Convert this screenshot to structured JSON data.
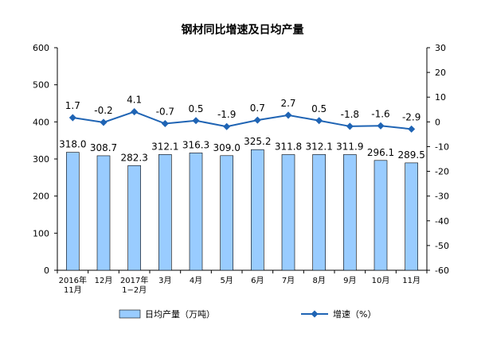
{
  "chart_data": {
    "type": "bar",
    "title": "钢材同比增速及日均产量",
    "categories": [
      [
        "2016年",
        "11月"
      ],
      [
        "12月"
      ],
      [
        "2017年",
        "1−2月"
      ],
      [
        "3月"
      ],
      [
        "4月"
      ],
      [
        "5月"
      ],
      [
        "6月"
      ],
      [
        "7月"
      ],
      [
        "8月"
      ],
      [
        "9月"
      ],
      [
        "10月"
      ],
      [
        "11月"
      ]
    ],
    "series": [
      {
        "name": "日均产量（万吨）",
        "type": "bar",
        "axis": "left",
        "color": "#99ccff",
        "values": [
          318.0,
          308.7,
          282.3,
          312.1,
          316.3,
          309.0,
          325.2,
          311.8,
          312.1,
          311.9,
          296.1,
          289.5
        ],
        "labels": [
          "318.0",
          "308.7",
          "282.3",
          "312.1",
          "316.3",
          "309.0",
          "325.2",
          "311.8",
          "312.1",
          "311.9",
          "296.1",
          "289.5"
        ]
      },
      {
        "name": "增速（%）",
        "type": "line",
        "axis": "right",
        "color": "#1f64b4",
        "values": [
          1.7,
          -0.2,
          4.1,
          -0.7,
          0.5,
          -1.9,
          0.7,
          2.7,
          0.5,
          -1.8,
          -1.6,
          -2.9
        ],
        "labels": [
          "1.7",
          "-0.2",
          "4.1",
          "-0.7",
          "0.5",
          "-1.9",
          "0.7",
          "2.7",
          "0.5",
          "-1.8",
          "-1.6",
          "-2.9"
        ]
      }
    ],
    "y_left": {
      "min": 0,
      "max": 600,
      "ticks": [
        0,
        100,
        200,
        300,
        400,
        500,
        600
      ]
    },
    "y_right": {
      "min": -60,
      "max": 30,
      "ticks": [
        -60,
        -50,
        -40,
        -30,
        -20,
        -10,
        0,
        10,
        20,
        30
      ]
    },
    "grid": false,
    "legend_position": "bottom"
  }
}
